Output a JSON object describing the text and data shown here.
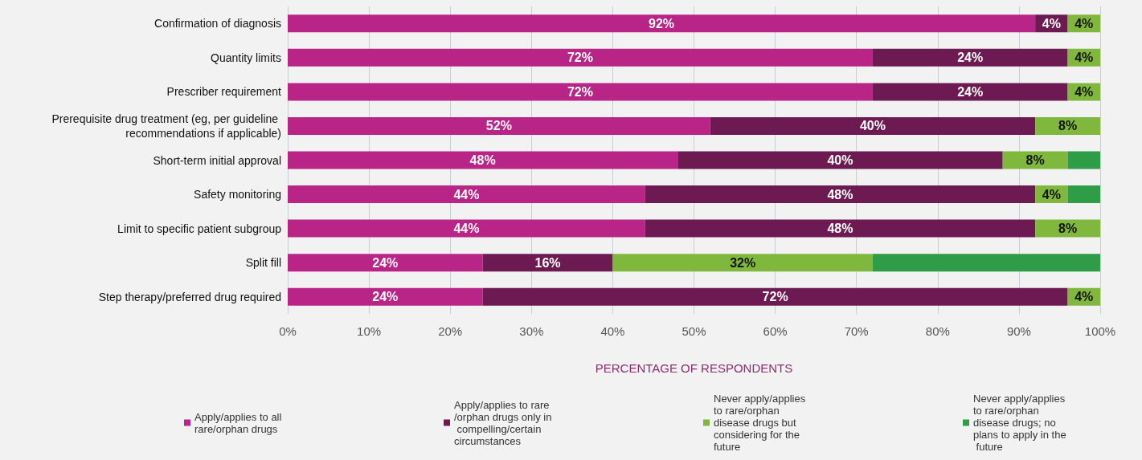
{
  "chart_data": {
    "type": "bar",
    "orientation": "horizontal",
    "stacked": true,
    "categories": [
      "Confirmation of diagnosis",
      "Quantity limits",
      "Prescriber requirement",
      "Prerequisite drug treatment (eg, per guideline recommendations if applicable)",
      "Short-term initial approval",
      "Safety monitoring",
      "Limit to specific patient subgroup",
      "Split fill",
      "Step therapy/preferred drug required"
    ],
    "series": [
      {
        "name": "Apply/applies to all rare/orphan drugs",
        "color": "#b82586",
        "values": [
          92,
          72,
          72,
          52,
          48,
          44,
          44,
          24,
          24
        ],
        "value_labels": [
          "92%",
          "72%",
          "72%",
          "52%",
          "48%",
          "44%",
          "44%",
          "24%",
          "24%"
        ]
      },
      {
        "name": "Apply/applies to rare/orphan drugs only in compelling/certain circumstances",
        "color": "#6d1a52",
        "values": [
          4,
          24,
          24,
          40,
          40,
          48,
          48,
          16,
          72
        ],
        "value_labels": [
          "4%",
          "24%",
          "24%",
          "40%",
          "40%",
          "48%",
          "48%",
          "16%",
          "72%"
        ]
      },
      {
        "name": "Never apply/applies to rare/orphan disease drugs but considering for the future",
        "color": "#80b83e",
        "values": [
          4,
          4,
          4,
          8,
          8,
          4,
          8,
          32,
          4
        ],
        "value_labels": [
          "4%",
          "4%",
          "4%",
          "8%",
          "8%",
          "4%",
          "8%",
          "32%",
          "4%"
        ]
      },
      {
        "name": "Never apply/applies to rare/orphan disease drugs; no plans to apply in the future",
        "color": "#2f9c48",
        "values": [
          null,
          null,
          null,
          null,
          4,
          4,
          null,
          28,
          null
        ],
        "value_labels": [
          null,
          null,
          null,
          null,
          null,
          null,
          null,
          null,
          null
        ]
      }
    ],
    "xlabel": "PERCENTAGE OF RESPONDENTS",
    "xlim": [
      0,
      100
    ],
    "xticks": [
      {
        "value": 0,
        "label": "0%"
      },
      {
        "value": 10,
        "label": "10%"
      },
      {
        "value": 20,
        "label": "20%"
      },
      {
        "value": 30,
        "label": "30%"
      },
      {
        "value": 40,
        "label": "40%"
      },
      {
        "value": 50,
        "label": "50%"
      },
      {
        "value": 60,
        "label": "60%"
      },
      {
        "value": 70,
        "label": "70%"
      },
      {
        "value": 80,
        "label": "80%"
      },
      {
        "value": 90,
        "label": "90%"
      },
      {
        "value": 100,
        "label": "100%"
      }
    ],
    "grid": "x",
    "legend": "bottom"
  }
}
